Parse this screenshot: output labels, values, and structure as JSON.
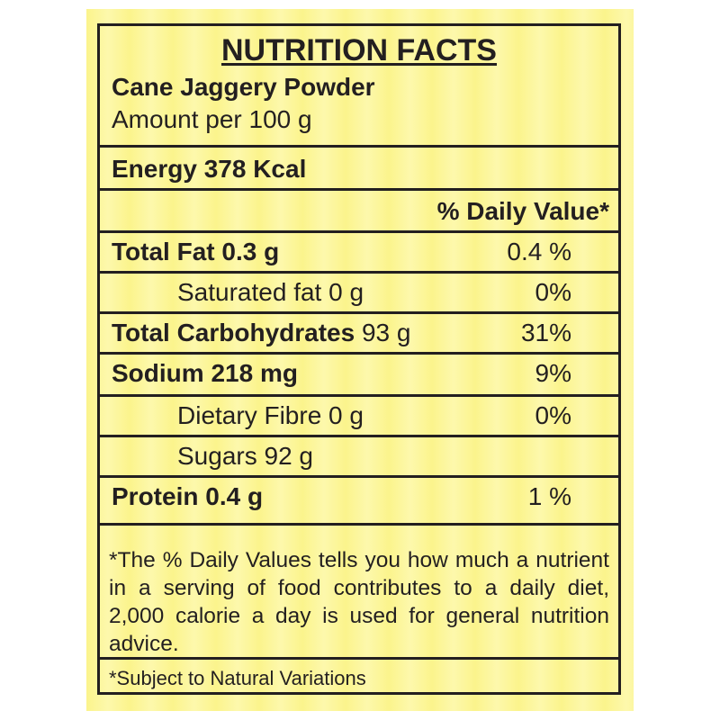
{
  "title": "NUTRITION FACTS",
  "product_name": "Cane Jaggery Powder",
  "amount": "Amount per 100 g",
  "energy": "Energy 378 Kcal",
  "dv_header": "% Daily Value*",
  "nutrients": [
    {
      "name": "Total Fat",
      "amount": "0.3 g",
      "dv": "0.4 %"
    },
    {
      "name": "Saturated fat",
      "amount": "0 g",
      "dv": "0%"
    },
    {
      "name": "Total Carbohydrates",
      "amount": "93 g",
      "dv": "31%"
    },
    {
      "name": "Sodium",
      "amount": "218 mg",
      "dv": "9%"
    },
    {
      "name": "Dietary Fibre",
      "amount": "0 g",
      "dv": "0%"
    },
    {
      "name": "Sugars",
      "amount": "92 g",
      "dv": ""
    },
    {
      "name": "Protein",
      "amount": "0.4 g",
      "dv": "1 %"
    }
  ],
  "footnote": "*The % Daily Values tells you how much a nutrient in a serving of food contributes to a daily diet, 2,000 calorie a day is used for general nutrition advice.",
  "variation_note": "*Subject to Natural Variations"
}
